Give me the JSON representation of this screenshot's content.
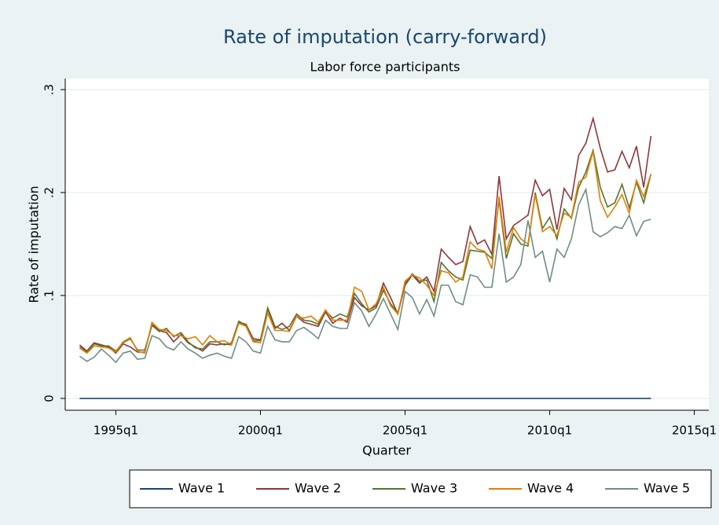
{
  "chart_data": {
    "type": "line",
    "title": "Rate of imputation (carry-forward)",
    "subtitle": "Labor force participants",
    "x_label": "Quarter",
    "y_label": "Rate of imputation",
    "x": [
      "1993q4",
      "1994q1",
      "1994q2",
      "1994q3",
      "1994q4",
      "1995q1",
      "1995q2",
      "1995q3",
      "1995q4",
      "1996q1",
      "1996q2",
      "1996q3",
      "1996q4",
      "1997q1",
      "1997q2",
      "1997q3",
      "1997q4",
      "1998q1",
      "1998q2",
      "1998q3",
      "1998q4",
      "1999q1",
      "1999q2",
      "1999q3",
      "1999q4",
      "2000q1",
      "2000q2",
      "2000q3",
      "2000q4",
      "2001q1",
      "2001q2",
      "2001q3",
      "2001q4",
      "2002q1",
      "2002q2",
      "2002q3",
      "2002q4",
      "2003q1",
      "2003q2",
      "2003q3",
      "2003q4",
      "2004q1",
      "2004q2",
      "2004q3",
      "2004q4",
      "2005q1",
      "2005q2",
      "2005q3",
      "2005q4",
      "2006q1",
      "2006q2",
      "2006q3",
      "2006q4",
      "2007q1",
      "2007q2",
      "2007q3",
      "2007q4",
      "2008q1",
      "2008q2",
      "2008q3",
      "2008q4",
      "2009q1",
      "2009q2",
      "2009q3",
      "2009q4",
      "2010q1",
      "2010q2",
      "2010q3",
      "2010q4",
      "2011q1",
      "2011q2",
      "2011q3",
      "2011q4",
      "2012q1",
      "2012q2",
      "2012q3",
      "2012q4",
      "2013q1",
      "2013q2",
      "2013q3"
    ],
    "xlim": [
      "1993q2",
      "2015q3"
    ],
    "xticks": [
      "1995q1",
      "2000q1",
      "2005q1",
      "2010q1",
      "2015q1"
    ],
    "ylim": [
      -0.0115,
      0.3107
    ],
    "yticks": [
      0,
      {
        "value": 0.1,
        "label": ".1"
      },
      {
        "value": 0.2,
        "label": ".2"
      },
      {
        "value": 0.3,
        "label": ".3"
      }
    ],
    "grid": true,
    "legend_position": "bottom",
    "series": [
      {
        "name": "Wave 1",
        "color": "#1a476f",
        "values": [
          0,
          0,
          0,
          0,
          0,
          0,
          0,
          0,
          0,
          0,
          0,
          0,
          0,
          0,
          0,
          0,
          0,
          0,
          0,
          0,
          0,
          0,
          0,
          0,
          0,
          0,
          0,
          0,
          0,
          0,
          0,
          0,
          0,
          0,
          0,
          0,
          0,
          0,
          0,
          0,
          0,
          0,
          0,
          0,
          0,
          0,
          0,
          0,
          0,
          0,
          0,
          0,
          0,
          0,
          0,
          0,
          0,
          0,
          0,
          0,
          0,
          0,
          0,
          0,
          0,
          0,
          0,
          0,
          0,
          0,
          0,
          0,
          0,
          0,
          0,
          0,
          0,
          0,
          0,
          0
        ]
      },
      {
        "name": "Wave 2",
        "color": "#90353b",
        "values": [
          0.052,
          0.046,
          0.054,
          0.052,
          0.05,
          0.044,
          0.053,
          0.05,
          0.045,
          0.045,
          0.072,
          0.066,
          0.064,
          0.055,
          0.062,
          0.054,
          0.05,
          0.046,
          0.053,
          0.052,
          0.053,
          0.052,
          0.074,
          0.072,
          0.058,
          0.057,
          0.087,
          0.068,
          0.073,
          0.066,
          0.08,
          0.074,
          0.072,
          0.07,
          0.084,
          0.073,
          0.078,
          0.074,
          0.098,
          0.09,
          0.086,
          0.09,
          0.112,
          0.098,
          0.082,
          0.11,
          0.12,
          0.112,
          0.118,
          0.104,
          0.145,
          0.137,
          0.13,
          0.133,
          0.167,
          0.15,
          0.154,
          0.14,
          0.216,
          0.155,
          0.168,
          0.173,
          0.178,
          0.212,
          0.197,
          0.203,
          0.164,
          0.204,
          0.193,
          0.236,
          0.248,
          0.272,
          0.243,
          0.22,
          0.222,
          0.24,
          0.224,
          0.245,
          0.205,
          0.255
        ]
      },
      {
        "name": "Wave 3",
        "color": "#55752f",
        "values": [
          0.05,
          0.045,
          0.053,
          0.051,
          0.051,
          0.046,
          0.054,
          0.058,
          0.047,
          0.047,
          0.071,
          0.065,
          0.068,
          0.06,
          0.064,
          0.055,
          0.049,
          0.048,
          0.055,
          0.055,
          0.052,
          0.054,
          0.075,
          0.071,
          0.056,
          0.056,
          0.088,
          0.07,
          0.067,
          0.07,
          0.082,
          0.076,
          0.075,
          0.072,
          0.085,
          0.078,
          0.082,
          0.079,
          0.102,
          0.092,
          0.084,
          0.088,
          0.105,
          0.092,
          0.083,
          0.112,
          0.121,
          0.114,
          0.115,
          0.094,
          0.132,
          0.124,
          0.118,
          0.115,
          0.144,
          0.143,
          0.142,
          0.136,
          0.193,
          0.136,
          0.16,
          0.15,
          0.148,
          0.2,
          0.165,
          0.176,
          0.155,
          0.184,
          0.175,
          0.205,
          0.22,
          0.241,
          0.205,
          0.186,
          0.19,
          0.208,
          0.185,
          0.21,
          0.19,
          0.218
        ]
      },
      {
        "name": "Wave 4",
        "color": "#e37e00",
        "values": [
          0.049,
          0.044,
          0.051,
          0.05,
          0.049,
          0.045,
          0.055,
          0.059,
          0.046,
          0.044,
          0.074,
          0.067,
          0.066,
          0.061,
          0.061,
          0.058,
          0.06,
          0.052,
          0.061,
          0.055,
          0.056,
          0.052,
          0.073,
          0.07,
          0.055,
          0.054,
          0.083,
          0.066,
          0.066,
          0.065,
          0.08,
          0.078,
          0.08,
          0.074,
          0.086,
          0.076,
          0.076,
          0.076,
          0.108,
          0.104,
          0.086,
          0.092,
          0.108,
          0.09,
          0.082,
          0.114,
          0.12,
          0.117,
          0.11,
          0.1,
          0.124,
          0.122,
          0.113,
          0.118,
          0.152,
          0.145,
          0.143,
          0.126,
          0.196,
          0.142,
          0.166,
          0.155,
          0.15,
          0.198,
          0.162,
          0.167,
          0.158,
          0.18,
          0.176,
          0.21,
          0.215,
          0.24,
          0.192,
          0.176,
          0.186,
          0.198,
          0.18,
          0.212,
          0.196,
          0.218
        ]
      },
      {
        "name": "Wave 5",
        "color": "#6e8e84",
        "values": [
          0.041,
          0.036,
          0.04,
          0.048,
          0.042,
          0.035,
          0.044,
          0.046,
          0.038,
          0.039,
          0.061,
          0.058,
          0.05,
          0.047,
          0.055,
          0.048,
          0.044,
          0.039,
          0.042,
          0.044,
          0.041,
          0.039,
          0.06,
          0.055,
          0.046,
          0.044,
          0.07,
          0.057,
          0.055,
          0.055,
          0.066,
          0.069,
          0.064,
          0.058,
          0.076,
          0.07,
          0.068,
          0.068,
          0.093,
          0.085,
          0.07,
          0.082,
          0.097,
          0.082,
          0.067,
          0.104,
          0.098,
          0.082,
          0.096,
          0.08,
          0.11,
          0.11,
          0.094,
          0.091,
          0.12,
          0.118,
          0.108,
          0.108,
          0.16,
          0.113,
          0.118,
          0.13,
          0.173,
          0.137,
          0.143,
          0.113,
          0.145,
          0.137,
          0.155,
          0.188,
          0.203,
          0.162,
          0.157,
          0.161,
          0.167,
          0.165,
          0.178,
          0.158,
          0.172,
          0.174
        ]
      }
    ]
  }
}
